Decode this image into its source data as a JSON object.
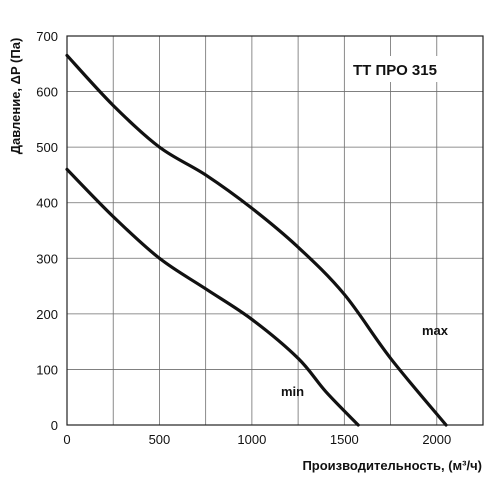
{
  "chart_data": {
    "type": "line",
    "title": "TT ПРО 315",
    "xlabel": "Производительность, (м³/ч)",
    "ylabel": "Давление, ΔP (Па)",
    "xlim": [
      0,
      2250
    ],
    "ylim": [
      0,
      700
    ],
    "x_ticks": [
      "0",
      "500",
      "1000",
      "1500",
      "2000"
    ],
    "y_ticks": [
      "0",
      "100",
      "200",
      "300",
      "400",
      "500",
      "600",
      "700"
    ],
    "grid": true,
    "series": [
      {
        "name": "max",
        "points": [
          [
            0,
            665
          ],
          [
            250,
            575
          ],
          [
            500,
            500
          ],
          [
            750,
            450
          ],
          [
            1000,
            390
          ],
          [
            1250,
            320
          ],
          [
            1500,
            235
          ],
          [
            1750,
            120
          ],
          [
            2050,
            0
          ]
        ]
      },
      {
        "name": "min",
        "points": [
          [
            0,
            460
          ],
          [
            250,
            375
          ],
          [
            500,
            300
          ],
          [
            750,
            245
          ],
          [
            1000,
            190
          ],
          [
            1250,
            120
          ],
          [
            1400,
            60
          ],
          [
            1575,
            0
          ]
        ]
      }
    ]
  }
}
